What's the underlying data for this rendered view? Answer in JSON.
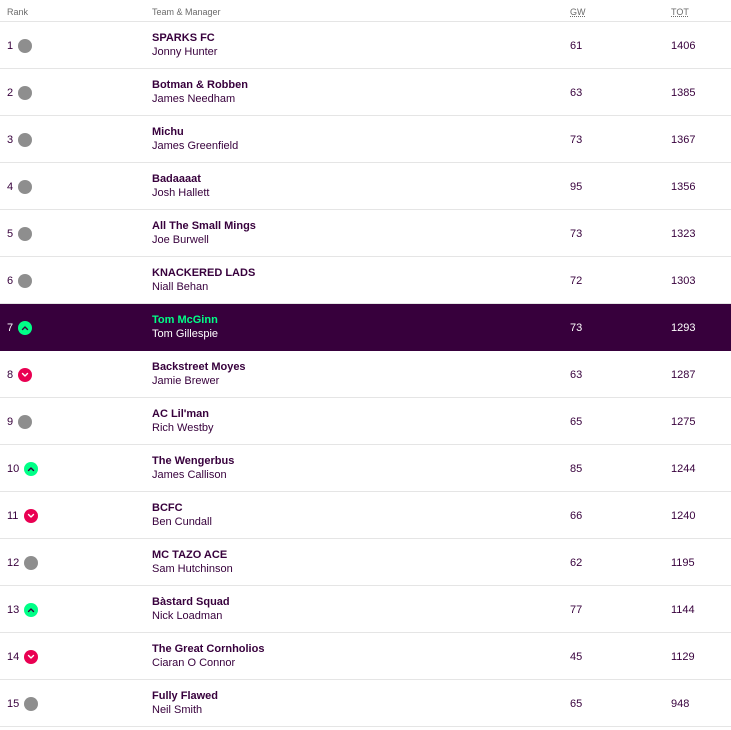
{
  "header": {
    "rank": "Rank",
    "team_manager": "Team & Manager",
    "gw": "GW",
    "tot": "TOT"
  },
  "colors": {
    "purple": "#37003c",
    "green": "#00ff87",
    "pink": "#e90052",
    "grey": "#8e8e8e"
  },
  "rows": [
    {
      "rank": "1",
      "movement": "same",
      "team": "SPARKS FC",
      "manager": "Jonny Hunter",
      "gw": "61",
      "tot": "1406"
    },
    {
      "rank": "2",
      "movement": "same",
      "team": "Botman & Robben",
      "manager": "James Needham",
      "gw": "63",
      "tot": "1385"
    },
    {
      "rank": "3",
      "movement": "same",
      "team": "Michu",
      "manager": "James Greenfield",
      "gw": "73",
      "tot": "1367"
    },
    {
      "rank": "4",
      "movement": "same",
      "team": "Badaaaat",
      "manager": "Josh Hallett",
      "gw": "95",
      "tot": "1356"
    },
    {
      "rank": "5",
      "movement": "same",
      "team": "All The Small Mings",
      "manager": "Joe Burwell",
      "gw": "73",
      "tot": "1323"
    },
    {
      "rank": "6",
      "movement": "same",
      "team": "KNACKERED LADS",
      "manager": "Niall Behan",
      "gw": "72",
      "tot": "1303"
    },
    {
      "rank": "7",
      "movement": "up",
      "team": "Tom McGinn",
      "manager": "Tom Gillespie",
      "gw": "73",
      "tot": "1293",
      "highlight": true
    },
    {
      "rank": "8",
      "movement": "down",
      "team": "Backstreet Moyes",
      "manager": "Jamie Brewer",
      "gw": "63",
      "tot": "1287"
    },
    {
      "rank": "9",
      "movement": "same",
      "team": "AC Lil'man",
      "manager": "Rich Westby",
      "gw": "65",
      "tot": "1275"
    },
    {
      "rank": "10",
      "movement": "up",
      "team": "The Wengerbus",
      "manager": "James Callison",
      "gw": "85",
      "tot": "1244"
    },
    {
      "rank": "11",
      "movement": "down",
      "team": "BCFC",
      "manager": "Ben Cundall",
      "gw": "66",
      "tot": "1240"
    },
    {
      "rank": "12",
      "movement": "same",
      "team": "MC TAZO ACE",
      "manager": "Sam Hutchinson",
      "gw": "62",
      "tot": "1195"
    },
    {
      "rank": "13",
      "movement": "up",
      "team": "Bàstard Squad",
      "manager": "Nick Loadman",
      "gw": "77",
      "tot": "1144"
    },
    {
      "rank": "14",
      "movement": "down",
      "team": "The Great Cornholios",
      "manager": "Ciaran O Connor",
      "gw": "45",
      "tot": "1129"
    },
    {
      "rank": "15",
      "movement": "same",
      "team": "Fully Flawed",
      "manager": "Neil Smith",
      "gw": "65",
      "tot": "948"
    }
  ]
}
